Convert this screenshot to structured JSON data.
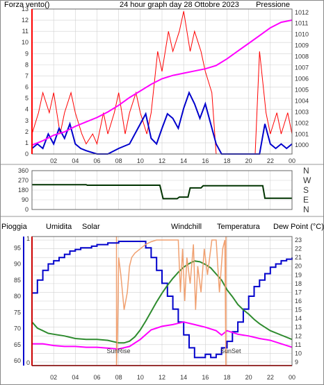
{
  "colors": {
    "wind": "#ff0000",
    "pressure": "#ff00ff",
    "title": "#ffd700",
    "direction": "#003300",
    "rain": "#cc0000",
    "humidity": "#0000cc",
    "solar": "#f0a070",
    "windchill": "#008080",
    "temperature": "#2e8b2e",
    "dewpoint": "#ff00ff",
    "axis": "#0000cc",
    "grid": "#d0d0d0"
  },
  "chart_data": [
    {
      "type": "line",
      "title": "24 hour graph day   28 Ottobre 2023",
      "left_label": "Forza vento()",
      "right_label": "Pressione",
      "x_ticks": [
        "02",
        "04",
        "06",
        "08",
        "10",
        "12",
        "14",
        "16",
        "18",
        "20",
        "22",
        "00"
      ],
      "xlim": [
        0,
        24
      ],
      "y_left": {
        "ticks": [
          "0",
          "1",
          "2",
          "3",
          "4",
          "5",
          "6",
          "7",
          "8",
          "9",
          "10",
          "11",
          "12",
          "13"
        ],
        "ylim": [
          0,
          13
        ]
      },
      "y_right": {
        "ticks": [
          "1000",
          "1001",
          "1002",
          "1003",
          "1004",
          "1005",
          "1006",
          "1007",
          "1008",
          "1009",
          "1010",
          "1011",
          "1012"
        ],
        "ylim": [
          999.2,
          1012.3
        ]
      },
      "series": [
        {
          "key": "gust",
          "axis": "left",
          "x": [
            0.0,
            0.6,
            1.0,
            1.6,
            2.0,
            2.6,
            3.0,
            3.6,
            4.0,
            4.6,
            5.0,
            5.6,
            6.0,
            6.6,
            7.0,
            7.6,
            8.0,
            8.6,
            9.0,
            9.6,
            10.0,
            10.6,
            11.0,
            11.6,
            12.0,
            12.6,
            13.0,
            13.6,
            14.0,
            14.6,
            15.0,
            15.6,
            16.0,
            16.6,
            17.0,
            17.6,
            18.0,
            18.6,
            19.0,
            19.6,
            20.0,
            20.6,
            21.0,
            21.6,
            22.0,
            22.6,
            23.0,
            23.6,
            24.0
          ],
          "y": [
            1.8,
            3.7,
            5.5,
            3.7,
            5.5,
            1.8,
            3.7,
            5.5,
            3.7,
            1.8,
            0.9,
            1.8,
            0.9,
            3.7,
            1.8,
            3.7,
            5.5,
            1.8,
            3.7,
            5.5,
            3.7,
            1.8,
            3.7,
            9.2,
            7.4,
            11.0,
            9.2,
            11.0,
            12.8,
            9.2,
            11.0,
            9.2,
            7.4,
            5.5,
            0.0,
            0.0,
            0.0,
            0.0,
            0.0,
            0.0,
            0.0,
            0.0,
            9.2,
            3.7,
            1.8,
            3.7,
            1.8,
            3.7,
            1.8
          ]
        },
        {
          "key": "avg",
          "axis": "left",
          "x": [
            0.0,
            0.5,
            1.0,
            1.5,
            2.0,
            2.5,
            3.0,
            3.5,
            4.0,
            4.5,
            5.0,
            6.0,
            7.0,
            8.0,
            9.0,
            10.0,
            10.5,
            11.0,
            11.5,
            12.0,
            12.5,
            13.0,
            13.5,
            14.0,
            14.5,
            15.0,
            15.5,
            16.0,
            16.5,
            17.0,
            17.5,
            18.0,
            19.0,
            20.0,
            21.0,
            21.5,
            22.0,
            22.5,
            23.0,
            23.5,
            24.0
          ],
          "y": [
            0.5,
            0.9,
            0.5,
            1.8,
            0.9,
            2.3,
            1.4,
            2.7,
            0.9,
            0.5,
            0.3,
            0.0,
            0.0,
            0.5,
            0.9,
            2.7,
            3.6,
            1.4,
            0.9,
            2.3,
            3.6,
            3.2,
            2.3,
            4.1,
            5.5,
            4.5,
            3.2,
            4.5,
            2.7,
            0.9,
            0.0,
            0.0,
            0.0,
            0.0,
            0.0,
            2.7,
            0.9,
            0.5,
            0.9,
            0.5,
            0.9
          ]
        },
        {
          "key": "pressure",
          "axis": "right",
          "x": [
            0,
            1,
            2,
            3,
            4,
            5,
            6,
            7,
            8,
            9,
            10,
            11,
            12,
            13,
            14,
            15,
            16,
            17,
            18,
            19,
            20,
            21,
            22,
            23,
            24
          ],
          "y": [
            1000.0,
            1000.4,
            1000.9,
            1001.2,
            1001.7,
            1002.1,
            1002.5,
            1003.0,
            1003.6,
            1004.3,
            1004.9,
            1005.5,
            1006.0,
            1006.3,
            1006.5,
            1006.7,
            1006.9,
            1007.2,
            1007.8,
            1008.5,
            1009.2,
            1009.9,
            1010.6,
            1011.1,
            1011.3
          ]
        }
      ]
    },
    {
      "type": "line",
      "x_ticks": [
        "02",
        "04",
        "06",
        "08",
        "10",
        "12",
        "14",
        "16",
        "18",
        "20",
        "22",
        "00"
      ],
      "y_left_ticks": [
        "360",
        "270",
        "180",
        "90",
        "0"
      ],
      "y_right_ticks": [
        "N",
        "W",
        "S",
        "E",
        "N"
      ],
      "ylim": [
        0,
        360
      ],
      "series": [
        {
          "key": "direction",
          "x": [
            0,
            5,
            5.1,
            11.8,
            12.1,
            13.4,
            13.6,
            14.4,
            14.6,
            15.6,
            15.8,
            21.3,
            21.5,
            24
          ],
          "y": [
            230,
            230,
            225,
            225,
            100,
            100,
            115,
            115,
            200,
            200,
            220,
            220,
            105,
            105
          ]
        }
      ]
    },
    {
      "type": "line",
      "labels": {
        "rain": "Pioggia",
        "humidity": "Umidita",
        "solar": "Solar",
        "windchill": "Windchill",
        "temperature": "Temperatura",
        "dewpoint": "Dew Point (°C)",
        "sunrise": "SunRise",
        "sunset": "SunSet"
      },
      "x_ticks": [
        "02",
        "04",
        "06",
        "08",
        "10",
        "12",
        "14",
        "16",
        "18",
        "20",
        "22",
        "00"
      ],
      "humidity_axis": {
        "ticks": [
          "60",
          "65",
          "70",
          "75",
          "80",
          "85",
          "90",
          "95"
        ],
        "ylim": [
          58.5,
          98.5
        ]
      },
      "temperature_axis": {
        "ticks": [
          "9",
          "10",
          "11",
          "12",
          "13",
          "14",
          "15",
          "16",
          "17",
          "18",
          "19",
          "20",
          "21",
          "22",
          "23"
        ],
        "ylim": [
          8.6,
          23.4
        ]
      },
      "rain_axis": {
        "ticks": [
          "0",
          "1"
        ]
      },
      "sunrise_hour": 7.8,
      "sunset_hour": 17.9,
      "series": [
        {
          "key": "humidity",
          "x": [
            0,
            0.5,
            1,
            1.5,
            2,
            2.5,
            3,
            3.5,
            4,
            4.5,
            5,
            5.5,
            6,
            6.5,
            7,
            7.5,
            8,
            8.5,
            9,
            9.5,
            10,
            10.5,
            11,
            11.5,
            12,
            12.5,
            13,
            13.5,
            14,
            14.5,
            15,
            15.5,
            16,
            16.5,
            17,
            17.5,
            18,
            18.5,
            19,
            19.5,
            20,
            20.5,
            21,
            21.5,
            22,
            22.5,
            23,
            23.5,
            24
          ],
          "y": [
            81,
            85,
            88,
            90,
            91,
            92,
            93,
            94,
            94.5,
            95,
            95,
            95.5,
            96,
            96,
            96.5,
            96.5,
            97,
            97,
            97,
            97,
            97,
            95,
            92,
            88,
            84,
            80,
            76,
            72,
            68,
            64,
            61,
            61,
            62,
            61,
            62,
            64,
            66,
            69,
            72,
            76,
            80,
            83,
            85,
            87,
            89,
            90,
            91,
            91.5,
            92
          ]
        },
        {
          "key": "temperature",
          "x": [
            0,
            0.5,
            1,
            1.5,
            2,
            3,
            4,
            5,
            6,
            7,
            8,
            8.5,
            9,
            9.5,
            10,
            10.5,
            11,
            11.5,
            12,
            12.5,
            13,
            13.5,
            14,
            14.5,
            15,
            15.5,
            16,
            16.5,
            17,
            17.5,
            18,
            18.5,
            19,
            19.5,
            20,
            20.5,
            21,
            21.5,
            22,
            23,
            24
          ],
          "y": [
            13.6,
            12.9,
            12.6,
            12.3,
            12.2,
            12.0,
            11.7,
            11.6,
            11.6,
            11.5,
            11.2,
            11.2,
            11.4,
            11.9,
            12.7,
            13.7,
            14.8,
            15.9,
            16.9,
            17.8,
            18.6,
            19.3,
            19.9,
            20.3,
            20.6,
            20.5,
            20.2,
            19.8,
            19.1,
            18.4,
            17.3,
            16.5,
            15.6,
            15.0,
            14.5,
            13.9,
            13.4,
            13.0,
            12.6,
            12.1,
            11.6
          ]
        },
        {
          "key": "dewpoint",
          "x": [
            0,
            1,
            2,
            3,
            4,
            5,
            6,
            7,
            8,
            9,
            10,
            11,
            12,
            13,
            14,
            15,
            16,
            17,
            17.5,
            18,
            19,
            20,
            21,
            22,
            23,
            24
          ],
          "y": [
            11.1,
            11.1,
            10.9,
            10.8,
            10.8,
            10.7,
            10.7,
            10.6,
            10.5,
            10.8,
            11.6,
            12.7,
            13.1,
            13.3,
            13.6,
            13.3,
            13.0,
            12.6,
            12.1,
            12.6,
            12.2,
            12.0,
            11.7,
            11.5,
            11.1,
            10.7
          ]
        },
        {
          "key": "solar",
          "x": [
            7.8,
            7.9,
            8.0,
            8.2,
            8.5,
            8.8,
            9.0,
            9.2,
            9.5,
            10.0,
            10.5,
            11.0,
            11.5,
            12.0,
            12.5,
            13.0,
            13.5,
            13.7,
            13.9,
            14.1,
            14.3,
            14.6,
            14.9,
            15.1,
            15.3,
            15.6,
            15.9,
            16.2,
            16.6,
            17.0,
            17.3,
            17.6,
            17.8,
            17.9
          ],
          "y": [
            8.6,
            12.5,
            21.0,
            19.0,
            15.0,
            17.0,
            20.0,
            21.0,
            21.5,
            22.0,
            22.5,
            22.8,
            23.0,
            23.0,
            23.0,
            23.0,
            23.0,
            17.0,
            22.0,
            16.0,
            21.0,
            18.0,
            22.5,
            15.0,
            20.0,
            17.0,
            22.0,
            19.0,
            23.0,
            23.0,
            17.0,
            22.0,
            23.0,
            8.6
          ]
        }
      ]
    }
  ]
}
